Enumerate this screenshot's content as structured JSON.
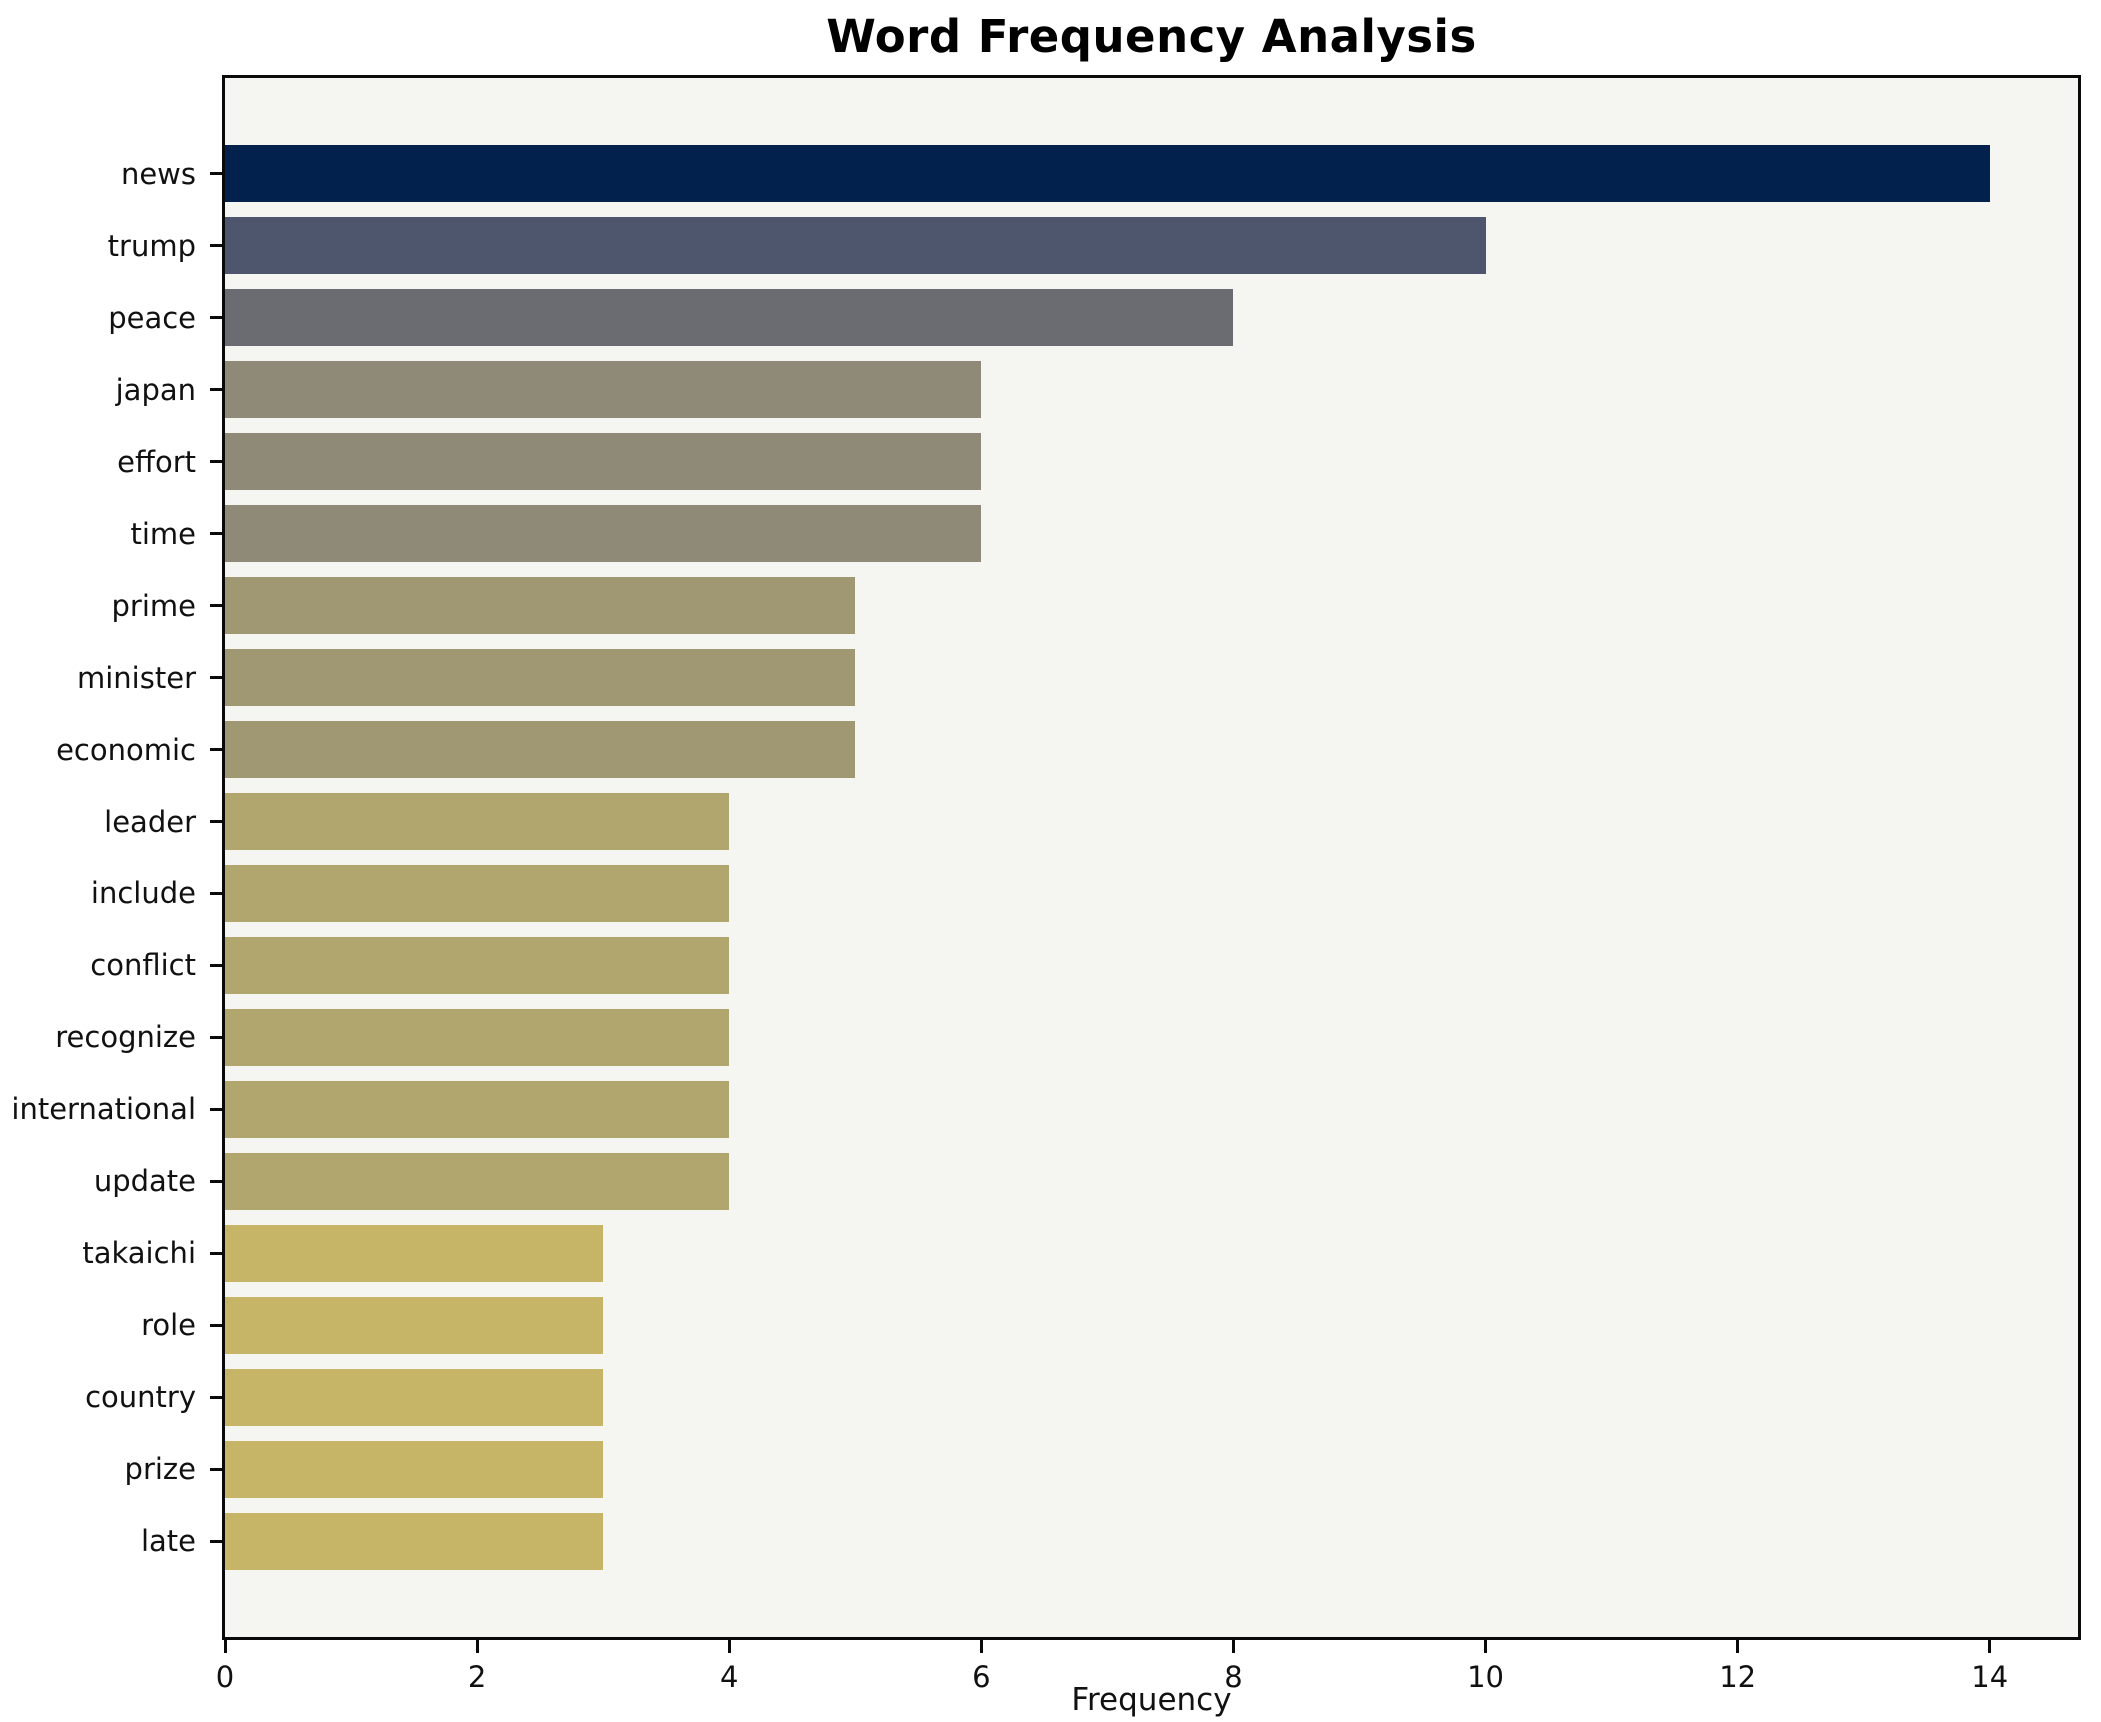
{
  "title": "Word Frequency Analysis",
  "chart_data": {
    "type": "bar",
    "orientation": "horizontal",
    "title": "Word Frequency Analysis",
    "xlabel": "Frequency",
    "ylabel": "",
    "categories": [
      "news",
      "trump",
      "peace",
      "japan",
      "effort",
      "time",
      "prime",
      "minister",
      "economic",
      "leader",
      "include",
      "conflict",
      "recognize",
      "international",
      "update",
      "takaichi",
      "role",
      "country",
      "prize",
      "late"
    ],
    "values": [
      14,
      10,
      8,
      6,
      6,
      6,
      5,
      5,
      5,
      4,
      4,
      4,
      4,
      4,
      4,
      3,
      3,
      3,
      3,
      3
    ],
    "bar_colors": [
      "#02214d",
      "#4d566d",
      "#6a6c72",
      "#8f8a77",
      "#8f8a77",
      "#8f8a77",
      "#a09872",
      "#a09872",
      "#a09872",
      "#b1a76e",
      "#b1a76e",
      "#b1a76e",
      "#b1a76e",
      "#b1a76e",
      "#b1a76e",
      "#c6b566",
      "#c6b566",
      "#c6b566",
      "#c6b566",
      "#c6b566"
    ],
    "xticks": [
      0,
      2,
      4,
      6,
      8,
      10,
      12,
      14
    ],
    "xlim": [
      0,
      14.7
    ],
    "grid": false,
    "legend": false,
    "plot_bg": "#f5f5f2",
    "fig_bg": "#ffffff",
    "accent_dark": "#02214d",
    "accent_light": "#c6b566"
  }
}
